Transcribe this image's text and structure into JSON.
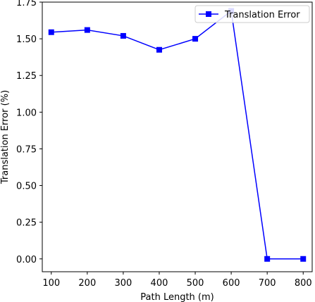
{
  "chart_data": {
    "type": "line",
    "xlabel": "Path Length (m)",
    "ylabel": "Translation Error (%)",
    "xlim": [
      75,
      825
    ],
    "ylim": [
      -0.0875,
      1.75
    ],
    "x_ticks": [
      100,
      200,
      300,
      400,
      500,
      600,
      700,
      800
    ],
    "x_tick_labels": [
      "100",
      "200",
      "300",
      "400",
      "500",
      "600",
      "700",
      "800"
    ],
    "y_ticks": [
      0.0,
      0.25,
      0.5,
      0.75,
      1.0,
      1.25,
      1.5,
      1.75
    ],
    "y_tick_labels": [
      "0.00",
      "0.25",
      "0.50",
      "0.75",
      "1.00",
      "1.25",
      "1.50",
      "1.75"
    ],
    "grid": false,
    "legend_position": "top-right",
    "series": [
      {
        "name": "Translation Error",
        "color": "#0000ff",
        "marker": "square",
        "x": [
          100,
          200,
          300,
          400,
          500,
          600,
          700,
          800
        ],
        "y": [
          1.545,
          1.56,
          1.52,
          1.425,
          1.5,
          1.69,
          0.0,
          0.0
        ]
      }
    ]
  }
}
